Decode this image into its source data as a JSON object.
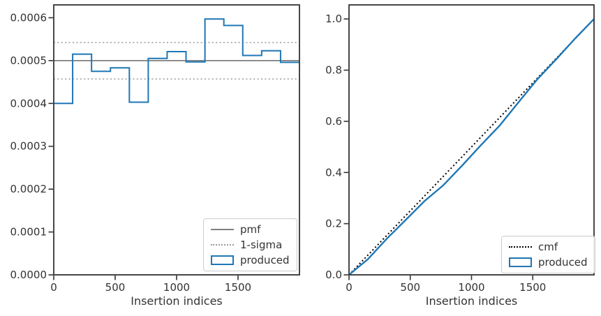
{
  "figure": {
    "background_color": "#ffffff",
    "accent_color": "#1f77b4"
  },
  "chart_data": [
    {
      "type": "bar",
      "histtype": "step",
      "title": "",
      "xlabel": "Insertion indices",
      "ylabel": "",
      "xlim": [
        0,
        2000
      ],
      "ylim": [
        0,
        0.00063
      ],
      "grid": false,
      "xticks": {
        "values": [
          0,
          500,
          1000,
          1500
        ],
        "labels": [
          "0",
          "500",
          "1000",
          "1500"
        ]
      },
      "yticks": {
        "values": [
          0,
          0.0001,
          0.0002,
          0.0003,
          0.0004,
          0.0005,
          0.0006
        ],
        "labels": [
          "0.0000",
          "0.0001",
          "0.0002",
          "0.0003",
          "0.0004",
          "0.0005",
          "0.0006"
        ]
      },
      "legend": {
        "position": "lower right",
        "entries": [
          {
            "label": "pmf",
            "marker": "line",
            "color": "#7f7f7f"
          },
          {
            "label": "1-sigma",
            "marker": "dotted-line",
            "color": "#999999"
          },
          {
            "label": "produced",
            "marker": "rect-outline",
            "color": "#1f77b4"
          }
        ]
      },
      "series": [
        {
          "name": "pmf",
          "type": "hline",
          "values": [
            0.0005
          ],
          "color": "#7f7f7f",
          "linestyle": "solid",
          "linewidth": 1.8
        },
        {
          "name": "1-sigma",
          "type": "hline",
          "values": [
            0.000542,
            0.000457
          ],
          "color": "#999999",
          "linestyle": "dotted",
          "linewidth": 1.5
        },
        {
          "name": "produced",
          "type": "step",
          "color": "#1f77b4",
          "linestyle": "solid",
          "linewidth": 2,
          "bin_edges": [
            0,
            153.8,
            307.7,
            461.5,
            615.4,
            769.2,
            923.1,
            1076.9,
            1230.8,
            1384.6,
            1538.5,
            1692.3,
            1846.2,
            2000
          ],
          "values": [
            0.0004,
            0.000515,
            0.000475,
            0.000483,
            0.000403,
            0.000505,
            0.000521,
            0.000497,
            0.000597,
            0.000582,
            0.000512,
            0.000523,
            0.000496
          ]
        }
      ]
    },
    {
      "type": "line",
      "title": "",
      "xlabel": "Insertion indices",
      "ylabel": "",
      "xlim": [
        0,
        2000
      ],
      "ylim": [
        0,
        1.055
      ],
      "grid": false,
      "xticks": {
        "values": [
          0,
          500,
          1000,
          1500
        ],
        "labels": [
          "0",
          "500",
          "1000",
          "1500"
        ]
      },
      "yticks": {
        "values": [
          0,
          0.2,
          0.4,
          0.6,
          0.8,
          1.0
        ],
        "labels": [
          "0.0",
          "0.2",
          "0.4",
          "0.6",
          "0.8",
          "1.0"
        ]
      },
      "legend": {
        "position": "lower right",
        "entries": [
          {
            "label": "cmf",
            "marker": "dotted-line",
            "color": "#000000"
          },
          {
            "label": "produced",
            "marker": "rect-outline",
            "color": "#1f77b4"
          }
        ]
      },
      "series": [
        {
          "name": "cmf",
          "type": "line",
          "color": "#000000",
          "linestyle": "dotted",
          "linewidth": 2,
          "x": [
            0,
            2000
          ],
          "y": [
            0,
            1.0
          ]
        },
        {
          "name": "produced",
          "type": "line",
          "color": "#1f77b4",
          "linestyle": "solid",
          "linewidth": 2.4,
          "x": [
            0,
            153.8,
            307.7,
            461.5,
            615.4,
            769.2,
            923.1,
            1076.9,
            1230.8,
            1384.6,
            1538.5,
            1692.3,
            1846.2,
            2000
          ],
          "y": [
            0,
            0.061,
            0.141,
            0.214,
            0.288,
            0.35,
            0.427,
            0.507,
            0.584,
            0.675,
            0.765,
            0.843,
            0.924,
            1.0
          ]
        }
      ]
    }
  ]
}
